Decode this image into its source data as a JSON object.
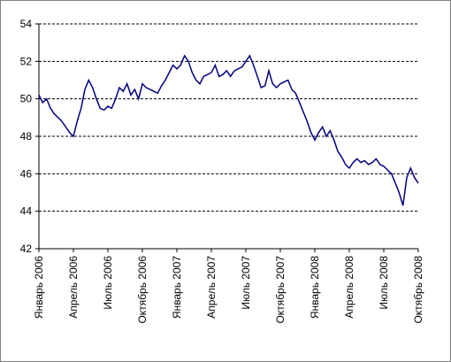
{
  "chart_data": {
    "type": "line",
    "categories": [
      "Январь 2006",
      null,
      null,
      null,
      null,
      null,
      null,
      null,
      null,
      "Апрель 2006",
      null,
      null,
      null,
      null,
      null,
      null,
      null,
      null,
      "Июль 2006",
      null,
      null,
      null,
      null,
      null,
      null,
      null,
      null,
      "Октябрь 2006",
      null,
      null,
      null,
      null,
      null,
      null,
      null,
      null,
      "Январь 2007",
      null,
      null,
      null,
      null,
      null,
      null,
      null,
      null,
      "Апрель 2007",
      null,
      null,
      null,
      null,
      null,
      null,
      null,
      null,
      "Июль 2007",
      null,
      null,
      null,
      null,
      null,
      null,
      null,
      null,
      "Октябрь 2007",
      null,
      null,
      null,
      null,
      null,
      null,
      null,
      null,
      "Январь 2008",
      null,
      null,
      null,
      null,
      null,
      null,
      null,
      null,
      "Апрель 2008",
      null,
      null,
      null,
      null,
      null,
      null,
      null,
      null,
      "Июль 2008",
      null,
      null,
      null,
      null,
      null,
      null,
      null,
      null,
      "Октябрь 2008"
    ],
    "series": [
      {
        "color": "#000080",
        "values": [
          50.2,
          49.8,
          50.0,
          49.5,
          49.2,
          49.0,
          48.8,
          48.5,
          48.2,
          48.0,
          48.8,
          49.5,
          50.5,
          51.0,
          50.6,
          50.0,
          49.5,
          49.4,
          49.6,
          49.5,
          50.0,
          50.6,
          50.4,
          50.8,
          50.2,
          50.5,
          50.0,
          50.8,
          50.6,
          50.5,
          50.4,
          50.3,
          50.7,
          51.0,
          51.4,
          51.8,
          51.6,
          51.8,
          52.3,
          52.0,
          51.4,
          51.0,
          50.8,
          51.2,
          51.3,
          51.4,
          51.8,
          51.2,
          51.3,
          51.5,
          51.2,
          51.5,
          51.6,
          51.7,
          52.0,
          52.3,
          51.8,
          51.2,
          50.6,
          50.7,
          51.5,
          50.8,
          50.6,
          50.8,
          50.9,
          51.0,
          50.5,
          50.3,
          49.8,
          49.3,
          48.8,
          48.2,
          47.8,
          48.2,
          48.5,
          48.0,
          48.3,
          47.8,
          47.2,
          46.9,
          46.5,
          46.3,
          46.6,
          46.8,
          46.6,
          46.7,
          46.5,
          46.6,
          46.8,
          46.5,
          46.4,
          46.2,
          46.0,
          45.5,
          45.0,
          44.3,
          45.8,
          46.3,
          45.8,
          45.5
        ]
      }
    ],
    "ylim": [
      42,
      54
    ],
    "yticks": [
      42,
      44,
      46,
      48,
      50,
      52,
      54
    ],
    "grid": true
  }
}
